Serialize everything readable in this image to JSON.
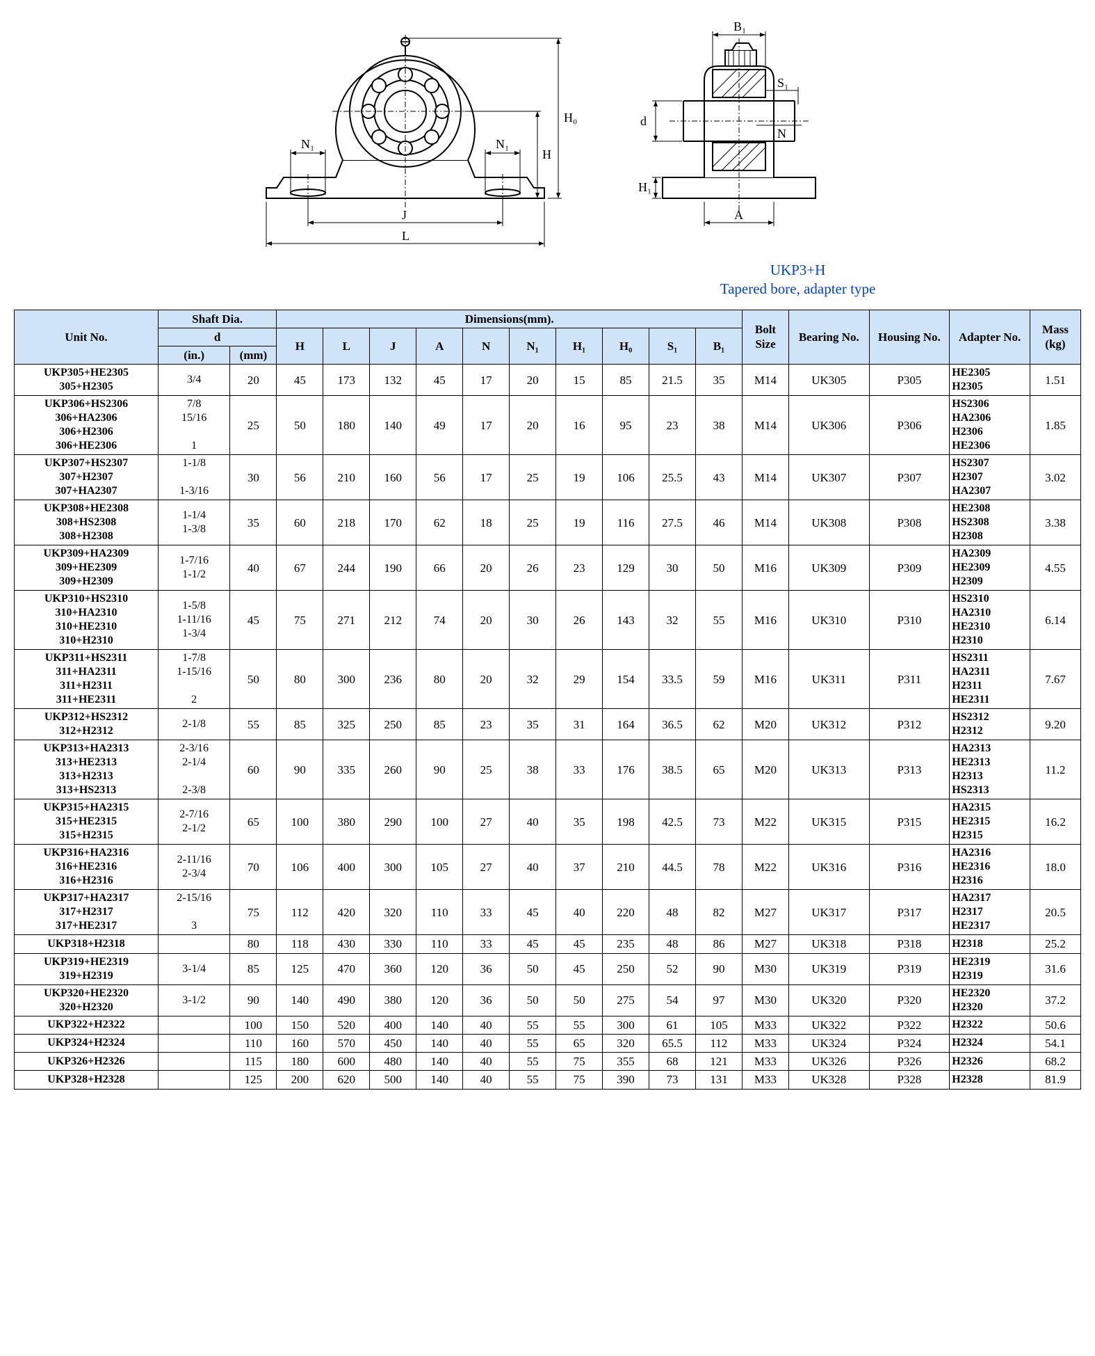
{
  "caption_line1": "UKP3+H",
  "caption_line2": "Tapered bore, adapter type",
  "caption_color": "#0044dd",
  "header_bg": "#d0e4f7",
  "columns": {
    "unit": "Unit No.",
    "shaft": "Shaft Dia.",
    "d": "d",
    "in": "(in.)",
    "mm": "(mm)",
    "dims": "Dimensions(mm).",
    "H": "H",
    "L": "L",
    "J": "J",
    "A": "A",
    "N": "N",
    "N1": "N₁",
    "H1": "H₁",
    "H0": "H₀",
    "S1": "S₁",
    "B1": "B₁",
    "bolt": "Bolt Size",
    "bearing": "Bearing No.",
    "housing": "Housing No.",
    "adapter": "Adapter No.",
    "mass": "Mass (kg)"
  },
  "col_widths": {
    "unit": 170,
    "in": 85,
    "mm": 55,
    "H": 55,
    "L": 55,
    "J": 55,
    "A": 55,
    "N": 55,
    "N1": 55,
    "H1": 55,
    "H0": 55,
    "S1": 55,
    "B1": 55,
    "bolt": 55,
    "bearing": 95,
    "housing": 95,
    "adapter": 95,
    "mass": 55
  },
  "rows": [
    {
      "unit": "UKP305+HE2305\n305+H2305",
      "in": "3/4",
      "mm": "20",
      "H": "45",
      "L": "173",
      "J": "132",
      "A": "45",
      "N": "17",
      "N1": "20",
      "H1": "15",
      "H0": "85",
      "S1": "21.5",
      "B1": "35",
      "bolt": "M14",
      "bearing": "UK305",
      "housing": "P305",
      "adapter": "HE2305\nH2305",
      "mass": "1.51"
    },
    {
      "unit": "UKP306+HS2306\n306+HA2306\n306+H2306\n306+HE2306",
      "in": "7/8\n15/16\n\n1",
      "mm": "25",
      "H": "50",
      "L": "180",
      "J": "140",
      "A": "49",
      "N": "17",
      "N1": "20",
      "H1": "16",
      "H0": "95",
      "S1": "23",
      "B1": "38",
      "bolt": "M14",
      "bearing": "UK306",
      "housing": "P306",
      "adapter": "HS2306\nHA2306\nH2306\nHE2306",
      "mass": "1.85"
    },
    {
      "unit": "UKP307+HS2307\n307+H2307\n307+HA2307",
      "in": "1-1/8\n\n1-3/16",
      "mm": "30",
      "H": "56",
      "L": "210",
      "J": "160",
      "A": "56",
      "N": "17",
      "N1": "25",
      "H1": "19",
      "H0": "106",
      "S1": "25.5",
      "B1": "43",
      "bolt": "M14",
      "bearing": "UK307",
      "housing": "P307",
      "adapter": "HS2307\nH2307\nHA2307",
      "mass": "3.02"
    },
    {
      "unit": "UKP308+HE2308\n308+HS2308\n308+H2308",
      "in": "1-1/4\n1-3/8",
      "mm": "35",
      "H": "60",
      "L": "218",
      "J": "170",
      "A": "62",
      "N": "18",
      "N1": "25",
      "H1": "19",
      "H0": "116",
      "S1": "27.5",
      "B1": "46",
      "bolt": "M14",
      "bearing": "UK308",
      "housing": "P308",
      "adapter": "HE2308\nHS2308\nH2308",
      "mass": "3.38"
    },
    {
      "unit": "UKP309+HA2309\n309+HE2309\n309+H2309",
      "in": "1-7/16\n1-1/2",
      "mm": "40",
      "H": "67",
      "L": "244",
      "J": "190",
      "A": "66",
      "N": "20",
      "N1": "26",
      "H1": "23",
      "H0": "129",
      "S1": "30",
      "B1": "50",
      "bolt": "M16",
      "bearing": "UK309",
      "housing": "P309",
      "adapter": "HA2309\nHE2309\nH2309",
      "mass": "4.55"
    },
    {
      "unit": "UKP310+HS2310\n310+HA2310\n310+HE2310\n310+H2310",
      "in": "1-5/8\n1-11/16\n1-3/4",
      "mm": "45",
      "H": "75",
      "L": "271",
      "J": "212",
      "A": "74",
      "N": "20",
      "N1": "30",
      "H1": "26",
      "H0": "143",
      "S1": "32",
      "B1": "55",
      "bolt": "M16",
      "bearing": "UK310",
      "housing": "P310",
      "adapter": "HS2310\nHA2310\nHE2310\nH2310",
      "mass": "6.14"
    },
    {
      "unit": "UKP311+HS2311\n311+HA2311\n311+H2311\n311+HE2311",
      "in": "1-7/8\n1-15/16\n\n2",
      "mm": "50",
      "H": "80",
      "L": "300",
      "J": "236",
      "A": "80",
      "N": "20",
      "N1": "32",
      "H1": "29",
      "H0": "154",
      "S1": "33.5",
      "B1": "59",
      "bolt": "M16",
      "bearing": "UK311",
      "housing": "P311",
      "adapter": "HS2311\nHA2311\nH2311\nHE2311",
      "mass": "7.67"
    },
    {
      "unit": "UKP312+HS2312\n312+H2312",
      "in": "2-1/8",
      "mm": "55",
      "H": "85",
      "L": "325",
      "J": "250",
      "A": "85",
      "N": "23",
      "N1": "35",
      "H1": "31",
      "H0": "164",
      "S1": "36.5",
      "B1": "62",
      "bolt": "M20",
      "bearing": "UK312",
      "housing": "P312",
      "adapter": "HS2312\nH2312",
      "mass": "9.20"
    },
    {
      "unit": "UKP313+HA2313\n313+HE2313\n313+H2313\n313+HS2313",
      "in": "2-3/16\n2-1/4\n\n2-3/8",
      "mm": "60",
      "H": "90",
      "L": "335",
      "J": "260",
      "A": "90",
      "N": "25",
      "N1": "38",
      "H1": "33",
      "H0": "176",
      "S1": "38.5",
      "B1": "65",
      "bolt": "M20",
      "bearing": "UK313",
      "housing": "P313",
      "adapter": "HA2313\nHE2313\nH2313\nHS2313",
      "mass": "11.2"
    },
    {
      "unit": "UKP315+HA2315\n315+HE2315\n315+H2315",
      "in": "2-7/16\n2-1/2",
      "mm": "65",
      "H": "100",
      "L": "380",
      "J": "290",
      "A": "100",
      "N": "27",
      "N1": "40",
      "H1": "35",
      "H0": "198",
      "S1": "42.5",
      "B1": "73",
      "bolt": "M22",
      "bearing": "UK315",
      "housing": "P315",
      "adapter": "HA2315\nHE2315\nH2315",
      "mass": "16.2"
    },
    {
      "unit": "UKP316+HA2316\n316+HE2316\n316+H2316",
      "in": "2-11/16\n2-3/4",
      "mm": "70",
      "H": "106",
      "L": "400",
      "J": "300",
      "A": "105",
      "N": "27",
      "N1": "40",
      "H1": "37",
      "H0": "210",
      "S1": "44.5",
      "B1": "78",
      "bolt": "M22",
      "bearing": "UK316",
      "housing": "P316",
      "adapter": "HA2316\nHE2316\nH2316",
      "mass": "18.0"
    },
    {
      "unit": "UKP317+HA2317\n317+H2317\n317+HE2317",
      "in": "2-15/16\n\n3",
      "mm": "75",
      "H": "112",
      "L": "420",
      "J": "320",
      "A": "110",
      "N": "33",
      "N1": "45",
      "H1": "40",
      "H0": "220",
      "S1": "48",
      "B1": "82",
      "bolt": "M27",
      "bearing": "UK317",
      "housing": "P317",
      "adapter": "HA2317\nH2317\nHE2317",
      "mass": "20.5"
    },
    {
      "unit": "UKP318+H2318",
      "in": "",
      "mm": "80",
      "H": "118",
      "L": "430",
      "J": "330",
      "A": "110",
      "N": "33",
      "N1": "45",
      "H1": "45",
      "H0": "235",
      "S1": "48",
      "B1": "86",
      "bolt": "M27",
      "bearing": "UK318",
      "housing": "P318",
      "adapter": "H2318",
      "mass": "25.2"
    },
    {
      "unit": "UKP319+HE2319\n319+H2319",
      "in": "3-1/4",
      "mm": "85",
      "H": "125",
      "L": "470",
      "J": "360",
      "A": "120",
      "N": "36",
      "N1": "50",
      "H1": "45",
      "H0": "250",
      "S1": "52",
      "B1": "90",
      "bolt": "M30",
      "bearing": "UK319",
      "housing": "P319",
      "adapter": "HE2319\nH2319",
      "mass": "31.6"
    },
    {
      "unit": "UKP320+HE2320\n320+H2320",
      "in": "3-1/2",
      "mm": "90",
      "H": "140",
      "L": "490",
      "J": "380",
      "A": "120",
      "N": "36",
      "N1": "50",
      "H1": "50",
      "H0": "275",
      "S1": "54",
      "B1": "97",
      "bolt": "M30",
      "bearing": "UK320",
      "housing": "P320",
      "adapter": "HE2320\nH2320",
      "mass": "37.2"
    },
    {
      "unit": "UKP322+H2322",
      "in": "",
      "mm": "100",
      "H": "150",
      "L": "520",
      "J": "400",
      "A": "140",
      "N": "40",
      "N1": "55",
      "H1": "55",
      "H0": "300",
      "S1": "61",
      "B1": "105",
      "bolt": "M33",
      "bearing": "UK322",
      "housing": "P322",
      "adapter": "H2322",
      "mass": "50.6"
    },
    {
      "unit": "UKP324+H2324",
      "in": "",
      "mm": "110",
      "H": "160",
      "L": "570",
      "J": "450",
      "A": "140",
      "N": "40",
      "N1": "55",
      "H1": "65",
      "H0": "320",
      "S1": "65.5",
      "B1": "112",
      "bolt": "M33",
      "bearing": "UK324",
      "housing": "P324",
      "adapter": "H2324",
      "mass": "54.1"
    },
    {
      "unit": "UKP326+H2326",
      "in": "",
      "mm": "115",
      "H": "180",
      "L": "600",
      "J": "480",
      "A": "140",
      "N": "40",
      "N1": "55",
      "H1": "75",
      "H0": "355",
      "S1": "68",
      "B1": "121",
      "bolt": "M33",
      "bearing": "UK326",
      "housing": "P326",
      "adapter": "H2326",
      "mass": "68.2"
    },
    {
      "unit": "UKP328+H2328",
      "in": "",
      "mm": "125",
      "H": "200",
      "L": "620",
      "J": "500",
      "A": "140",
      "N": "40",
      "N1": "55",
      "H1": "75",
      "H0": "390",
      "S1": "73",
      "B1": "131",
      "bolt": "M33",
      "bearing": "UK328",
      "housing": "P328",
      "adapter": "H2328",
      "mass": "81.9"
    }
  ],
  "diagram_labels": {
    "front": {
      "N1l": "N₁",
      "N1r": "N₁",
      "H0": "H₀",
      "H": "H",
      "J": "J",
      "L": "L"
    },
    "side": {
      "B1": "B₁",
      "S1": "S₁",
      "N": "N",
      "d": "d",
      "H1": "H₁",
      "A": "A"
    }
  }
}
